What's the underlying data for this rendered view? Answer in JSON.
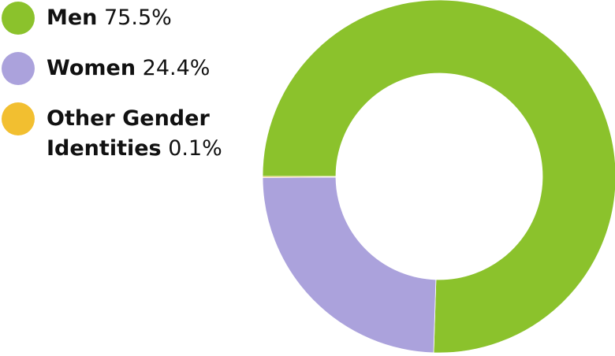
{
  "chart_data": {
    "type": "pie",
    "donut": true,
    "categories": [
      "Men",
      "Women",
      "Other Gender Identities"
    ],
    "values": [
      75.5,
      24.4,
      0.1
    ],
    "value_labels": [
      "75.5%",
      "24.4%",
      "0.1%"
    ],
    "colors": [
      "#8bc22c",
      "#aba2dc",
      "#f2bf30"
    ],
    "start_angle_deg": 180,
    "direction": "counterclockwise",
    "legend_position": "left"
  }
}
